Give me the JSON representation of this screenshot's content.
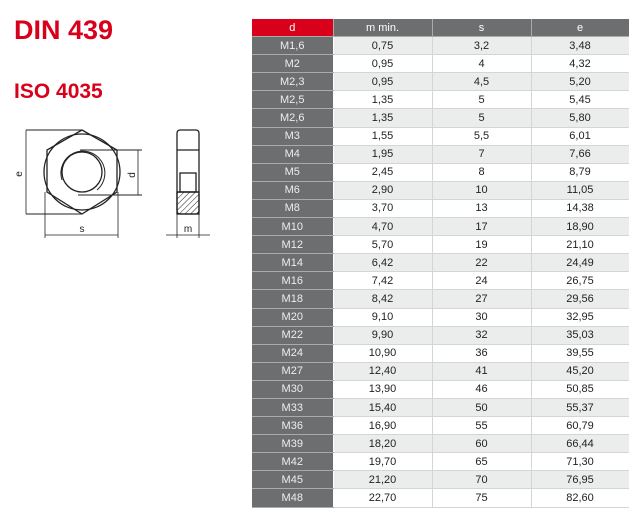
{
  "titles": {
    "standard": "DIN 439",
    "iso": "ISO 4035"
  },
  "drawing": {
    "labels": {
      "e": "e",
      "d": "d",
      "s": "s",
      "m": "m"
    }
  },
  "colors": {
    "accent": "#d9001b",
    "header": "#6d6e70",
    "stripe": "#ebedec"
  },
  "table": {
    "headers": [
      "d",
      "m min.",
      "s",
      "e"
    ],
    "rows": [
      [
        "M1,6",
        "0,75",
        "3,2",
        "3,48"
      ],
      [
        "M2",
        "0,95",
        "4",
        "4,32"
      ],
      [
        "M2,3",
        "0,95",
        "4,5",
        "5,20"
      ],
      [
        "M2,5",
        "1,35",
        "5",
        "5,45"
      ],
      [
        "M2,6",
        "1,35",
        "5",
        "5,80"
      ],
      [
        "M3",
        "1,55",
        "5,5",
        "6,01"
      ],
      [
        "M4",
        "1,95",
        "7",
        "7,66"
      ],
      [
        "M5",
        "2,45",
        "8",
        "8,79"
      ],
      [
        "M6",
        "2,90",
        "10",
        "11,05"
      ],
      [
        "M8",
        "3,70",
        "13",
        "14,38"
      ],
      [
        "M10",
        "4,70",
        "17",
        "18,90"
      ],
      [
        "M12",
        "5,70",
        "19",
        "21,10"
      ],
      [
        "M14",
        "6,42",
        "22",
        "24,49"
      ],
      [
        "M16",
        "7,42",
        "24",
        "26,75"
      ],
      [
        "M18",
        "8,42",
        "27",
        "29,56"
      ],
      [
        "M20",
        "9,10",
        "30",
        "32,95"
      ],
      [
        "M22",
        "9,90",
        "32",
        "35,03"
      ],
      [
        "M24",
        "10,90",
        "36",
        "39,55"
      ],
      [
        "M27",
        "12,40",
        "41",
        "45,20"
      ],
      [
        "M30",
        "13,90",
        "46",
        "50,85"
      ],
      [
        "M33",
        "15,40",
        "50",
        "55,37"
      ],
      [
        "M36",
        "16,90",
        "55",
        "60,79"
      ],
      [
        "M39",
        "18,20",
        "60",
        "66,44"
      ],
      [
        "M42",
        "19,70",
        "65",
        "71,30"
      ],
      [
        "M45",
        "21,20",
        "70",
        "76,95"
      ],
      [
        "M48",
        "22,70",
        "75",
        "82,60"
      ]
    ]
  }
}
